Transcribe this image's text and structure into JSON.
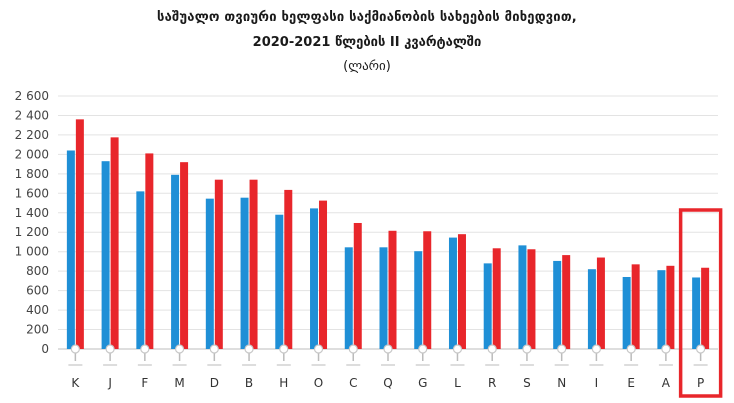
{
  "title": {
    "line1": "საშუალო თვიური ხელფასი საქმიანობის სახეების მიხედვით,",
    "line2": "2020-2021 წლების II კვარტალში",
    "line3": "(ლარი)"
  },
  "colors": {
    "series_2020": "#1f8fd6",
    "series_2021": "#e8262b",
    "highlight": "#e8262b",
    "grid": "#e3e3e3"
  },
  "chart_data": {
    "type": "bar",
    "categories": [
      "K",
      "J",
      "F",
      "M",
      "D",
      "B",
      "H",
      "O",
      "C",
      "Q",
      "G",
      "L",
      "R",
      "S",
      "N",
      "I",
      "E",
      "A",
      "P"
    ],
    "series": [
      {
        "values": [
          2040,
          1930,
          1620,
          1790,
          1545,
          1555,
          1380,
          1445,
          1045,
          1045,
          1005,
          1145,
          880,
          1065,
          905,
          820,
          740,
          810,
          735
        ]
      },
      {
        "values": [
          2360,
          2175,
          2010,
          1920,
          1740,
          1740,
          1635,
          1525,
          1295,
          1215,
          1210,
          1180,
          1035,
          1025,
          965,
          940,
          870,
          855,
          835
        ]
      }
    ],
    "ylim": [
      0,
      2600
    ],
    "yticks": [
      0,
      200,
      400,
      600,
      800,
      1000,
      1200,
      1400,
      1600,
      1800,
      2000,
      2200,
      2400,
      2600
    ],
    "ytick_labels": [
      "0",
      "200",
      "400",
      "600",
      "800",
      "1 000",
      "1 200",
      "1 400",
      "1 600",
      "1 800",
      "2 000",
      "2 200",
      "2 400",
      "2 600"
    ],
    "grid": true,
    "highlighted_category": "P"
  }
}
